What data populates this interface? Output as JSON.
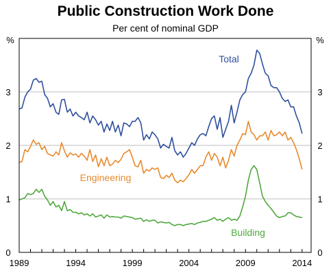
{
  "chart_data": {
    "type": "line",
    "title": "Public Construction Work Done",
    "subtitle": "Per cent of nominal GDP",
    "ylabel_left": "%",
    "ylabel_right": "%",
    "xlim": [
      1989,
      2014.8
    ],
    "ylim": [
      0,
      4
    ],
    "yticks": [
      0,
      1,
      2,
      3
    ],
    "xticks": [
      1989,
      1994,
      1999,
      2004,
      2009,
      2014
    ],
    "grid": "horizontal",
    "series": [
      {
        "name": "Total",
        "color": "#2e4f9e",
        "x": [
          1989.0,
          1989.25,
          1989.5,
          1989.75,
          1990.0,
          1990.25,
          1990.5,
          1990.75,
          1991.0,
          1991.25,
          1991.5,
          1991.75,
          1992.0,
          1992.25,
          1992.5,
          1992.75,
          1993.0,
          1993.25,
          1993.5,
          1993.75,
          1994.0,
          1994.25,
          1994.5,
          1994.75,
          1995.0,
          1995.25,
          1995.5,
          1995.75,
          1996.0,
          1996.25,
          1996.5,
          1996.75,
          1997.0,
          1997.25,
          1997.5,
          1997.75,
          1998.0,
          1998.25,
          1998.5,
          1998.75,
          1999.0,
          1999.25,
          1999.5,
          1999.75,
          2000.0,
          2000.25,
          2000.5,
          2000.75,
          2001.0,
          2001.25,
          2001.5,
          2001.75,
          2002.0,
          2002.25,
          2002.5,
          2002.75,
          2003.0,
          2003.25,
          2003.5,
          2003.75,
          2004.0,
          2004.25,
          2004.5,
          2004.75,
          2005.0,
          2005.25,
          2005.5,
          2005.75,
          2006.0,
          2006.25,
          2006.5,
          2006.75,
          2007.0,
          2007.25,
          2007.5,
          2007.75,
          2008.0,
          2008.25,
          2008.5,
          2008.75,
          2009.0,
          2009.25,
          2009.5,
          2009.75,
          2010.0,
          2010.25,
          2010.5,
          2010.75,
          2011.0,
          2011.25,
          2011.5,
          2011.75,
          2012.0,
          2012.25,
          2012.5,
          2012.75,
          2013.0,
          2013.25,
          2013.5,
          2013.75,
          2014.0
        ],
        "values": [
          2.68,
          2.7,
          2.9,
          3.0,
          3.05,
          3.22,
          3.25,
          3.18,
          3.2,
          2.95,
          2.88,
          2.72,
          2.78,
          2.62,
          2.58,
          2.85,
          2.86,
          2.62,
          2.68,
          2.55,
          2.62,
          2.55,
          2.52,
          2.48,
          2.62,
          2.42,
          2.55,
          2.48,
          2.38,
          2.45,
          2.25,
          2.4,
          2.28,
          2.45,
          2.25,
          2.38,
          2.18,
          2.42,
          2.4,
          2.35,
          2.45,
          2.45,
          2.52,
          2.42,
          2.1,
          2.2,
          2.12,
          2.25,
          2.2,
          2.12,
          1.95,
          2.02,
          1.98,
          1.95,
          2.15,
          1.9,
          1.82,
          1.88,
          1.78,
          1.85,
          1.95,
          2.05,
          2.0,
          2.12,
          2.2,
          2.22,
          2.18,
          2.35,
          2.5,
          2.55,
          2.3,
          2.52,
          2.15,
          2.3,
          2.45,
          2.75,
          2.42,
          2.62,
          2.85,
          2.95,
          3.0,
          3.25,
          3.35,
          3.5,
          3.78,
          3.72,
          3.52,
          3.35,
          3.3,
          3.12,
          3.08,
          3.08,
          3.0,
          2.88,
          2.82,
          2.85,
          2.72,
          2.72,
          2.55,
          2.42,
          2.22
        ]
      },
      {
        "name": "Engineering",
        "color": "#e8892c",
        "x": [
          1989.0,
          1989.25,
          1989.5,
          1989.75,
          1990.0,
          1990.25,
          1990.5,
          1990.75,
          1991.0,
          1991.25,
          1991.5,
          1991.75,
          1992.0,
          1992.25,
          1992.5,
          1992.75,
          1993.0,
          1993.25,
          1993.5,
          1993.75,
          1994.0,
          1994.25,
          1994.5,
          1994.75,
          1995.0,
          1995.25,
          1995.5,
          1995.75,
          1996.0,
          1996.25,
          1996.5,
          1996.75,
          1997.0,
          1997.25,
          1997.5,
          1997.75,
          1998.0,
          1998.25,
          1998.5,
          1998.75,
          1999.0,
          1999.25,
          1999.5,
          1999.75,
          2000.0,
          2000.25,
          2000.5,
          2000.75,
          2001.0,
          2001.25,
          2001.5,
          2001.75,
          2002.0,
          2002.25,
          2002.5,
          2002.75,
          2003.0,
          2003.25,
          2003.5,
          2003.75,
          2004.0,
          2004.25,
          2004.5,
          2004.75,
          2005.0,
          2005.25,
          2005.5,
          2005.75,
          2006.0,
          2006.25,
          2006.5,
          2006.75,
          2007.0,
          2007.25,
          2007.5,
          2007.75,
          2008.0,
          2008.25,
          2008.5,
          2008.75,
          2009.0,
          2009.25,
          2009.5,
          2009.75,
          2010.0,
          2010.25,
          2010.5,
          2010.75,
          2011.0,
          2011.25,
          2011.5,
          2011.75,
          2012.0,
          2012.25,
          2012.5,
          2012.75,
          2013.0,
          2013.25,
          2013.5,
          2013.75,
          2014.0
        ],
        "values": [
          1.68,
          1.7,
          1.92,
          1.88,
          1.98,
          2.1,
          2.02,
          2.05,
          1.92,
          1.98,
          1.85,
          1.82,
          1.8,
          1.88,
          1.82,
          2.05,
          1.9,
          1.78,
          1.86,
          1.82,
          1.84,
          1.78,
          1.85,
          1.8,
          1.72,
          1.92,
          1.7,
          1.82,
          1.6,
          1.75,
          1.62,
          1.78,
          1.62,
          1.65,
          1.72,
          1.68,
          1.74,
          1.85,
          1.88,
          1.92,
          1.78,
          1.62,
          1.6,
          1.72,
          1.48,
          1.55,
          1.52,
          1.58,
          1.55,
          1.58,
          1.4,
          1.38,
          1.44,
          1.4,
          1.48,
          1.35,
          1.3,
          1.35,
          1.32,
          1.38,
          1.45,
          1.55,
          1.48,
          1.55,
          1.62,
          1.62,
          1.78,
          1.88,
          1.72,
          1.85,
          1.78,
          1.62,
          1.78,
          1.58,
          1.72,
          1.92,
          1.8,
          2.0,
          2.1,
          2.22,
          2.2,
          2.45,
          2.25,
          2.2,
          2.1,
          2.18,
          2.18,
          2.25,
          2.1,
          2.28,
          2.18,
          2.2,
          2.25,
          2.18,
          2.25,
          2.1,
          2.15,
          2.05,
          1.92,
          1.75,
          1.55
        ]
      },
      {
        "name": "Building",
        "color": "#4ea83c",
        "x": [
          1989.0,
          1989.25,
          1989.5,
          1989.75,
          1990.0,
          1990.25,
          1990.5,
          1990.75,
          1991.0,
          1991.25,
          1991.5,
          1991.75,
          1992.0,
          1992.25,
          1992.5,
          1992.75,
          1993.0,
          1993.25,
          1993.5,
          1993.75,
          1994.0,
          1994.25,
          1994.5,
          1994.75,
          1995.0,
          1995.25,
          1995.5,
          1995.75,
          1996.0,
          1996.25,
          1996.5,
          1996.75,
          1997.0,
          1997.25,
          1997.5,
          1997.75,
          1998.0,
          1998.25,
          1998.5,
          1998.75,
          1999.0,
          1999.25,
          1999.5,
          1999.75,
          2000.0,
          2000.25,
          2000.5,
          2000.75,
          2001.0,
          2001.25,
          2001.5,
          2001.75,
          2002.0,
          2002.25,
          2002.5,
          2002.75,
          2003.0,
          2003.25,
          2003.5,
          2003.75,
          2004.0,
          2004.25,
          2004.5,
          2004.75,
          2005.0,
          2005.25,
          2005.5,
          2005.75,
          2006.0,
          2006.25,
          2006.5,
          2006.75,
          2007.0,
          2007.25,
          2007.5,
          2007.75,
          2008.0,
          2008.25,
          2008.5,
          2008.75,
          2009.0,
          2009.25,
          2009.5,
          2009.75,
          2010.0,
          2010.25,
          2010.5,
          2010.75,
          2011.0,
          2011.25,
          2011.5,
          2011.75,
          2012.0,
          2012.25,
          2012.5,
          2012.75,
          2013.0,
          2013.25,
          2013.5,
          2013.75,
          2014.0
        ],
        "values": [
          0.98,
          1.0,
          1.02,
          1.1,
          1.08,
          1.1,
          1.18,
          1.12,
          1.18,
          1.05,
          0.98,
          0.88,
          0.95,
          0.85,
          0.88,
          0.78,
          0.95,
          0.78,
          0.8,
          0.75,
          0.75,
          0.72,
          0.74,
          0.7,
          0.72,
          0.68,
          0.72,
          0.66,
          0.68,
          0.7,
          0.64,
          0.7,
          0.66,
          0.67,
          0.66,
          0.66,
          0.64,
          0.68,
          0.67,
          0.66,
          0.65,
          0.62,
          0.63,
          0.64,
          0.58,
          0.61,
          0.58,
          0.6,
          0.6,
          0.55,
          0.57,
          0.56,
          0.55,
          0.56,
          0.52,
          0.5,
          0.52,
          0.52,
          0.5,
          0.52,
          0.53,
          0.54,
          0.52,
          0.55,
          0.56,
          0.58,
          0.58,
          0.6,
          0.62,
          0.65,
          0.6,
          0.62,
          0.58,
          0.62,
          0.65,
          0.6,
          0.62,
          0.6,
          0.68,
          0.85,
          1.05,
          1.35,
          1.55,
          1.62,
          1.55,
          1.3,
          1.05,
          0.95,
          0.88,
          0.82,
          0.75,
          0.68,
          0.65,
          0.67,
          0.68,
          0.74,
          0.74,
          0.7,
          0.67,
          0.66,
          0.65
        ]
      }
    ],
    "annotations": [
      {
        "text": "Total",
        "color": "#2e4f9e"
      },
      {
        "text": "Engineering",
        "color": "#e8892c"
      },
      {
        "text": "Building",
        "color": "#4ea83c"
      }
    ]
  }
}
